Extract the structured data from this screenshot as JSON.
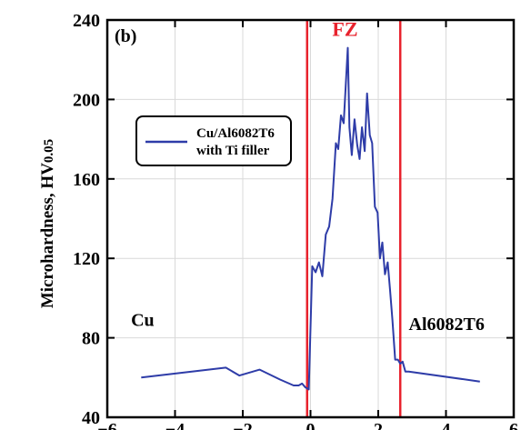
{
  "chart_data": {
    "type": "line",
    "panel_label": "(b)",
    "ylabel_main": "Microhardness, HV",
    "ylabel_sub": "0.05",
    "xlim": [
      -6,
      6
    ],
    "ylim": [
      40,
      240
    ],
    "xticks": [
      -6,
      -4,
      -2,
      0,
      2,
      4,
      6
    ],
    "yticks": [
      40,
      80,
      120,
      160,
      200,
      240
    ],
    "grid": true,
    "legend_position": "upper-left",
    "colors": {
      "series": "#2e3ca8",
      "boundary": "#e8222d",
      "grid": "#d9d9d9"
    },
    "series": [
      {
        "name": "Cu/Al6082T6 with Ti filler",
        "legend_lines": [
          "Cu/Al6082T6",
          "with Ti filler"
        ],
        "x": [
          -5.0,
          -2.5,
          -2.1,
          -1.5,
          -0.9,
          -0.5,
          -0.35,
          -0.25,
          -0.15,
          -0.05,
          0.05,
          0.15,
          0.25,
          0.35,
          0.45,
          0.55,
          0.65,
          0.75,
          0.82,
          0.9,
          0.98,
          1.05,
          1.1,
          1.15,
          1.22,
          1.3,
          1.38,
          1.45,
          1.52,
          1.6,
          1.67,
          1.75,
          1.82,
          1.9,
          1.98,
          2.05,
          2.12,
          2.2,
          2.28,
          2.35,
          2.42,
          2.5,
          2.58,
          2.65,
          2.72,
          2.8,
          2.9,
          5.0
        ],
        "y": [
          60,
          65,
          61,
          64,
          59,
          56,
          56,
          57,
          55,
          54,
          116,
          113,
          118,
          111,
          132,
          136,
          150,
          178,
          175,
          192,
          188,
          210,
          226,
          186,
          172,
          190,
          177,
          170,
          186,
          174,
          203,
          182,
          178,
          146,
          143,
          120,
          128,
          112,
          118,
          104,
          89,
          69,
          69,
          67,
          68,
          63,
          63,
          58
        ]
      }
    ],
    "vertical_lines": [
      -0.1,
      2.65
    ],
    "annotations": [
      {
        "text": "FZ",
        "x": 1.02,
        "y": 232
      },
      {
        "text": "Cu",
        "x": -5.3,
        "y": 86
      },
      {
        "text": "Al6082T6",
        "x": 2.9,
        "y": 84
      }
    ]
  }
}
